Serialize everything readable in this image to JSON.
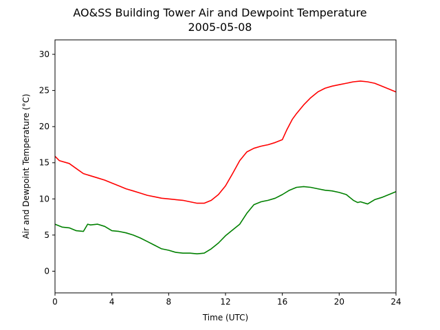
{
  "chart_data": {
    "type": "line",
    "title": "AO&SS Building Tower Air and Dewpoint Temperature",
    "subtitle": "2005-05-08",
    "xlabel": "Time (UTC)",
    "ylabel": "Air and Dewpoint Temperature (°C)",
    "xlim": [
      0,
      24
    ],
    "ylim": [
      -3,
      32
    ],
    "xticks": [
      0,
      4,
      8,
      12,
      16,
      20,
      24
    ],
    "yticks": [
      0,
      5,
      10,
      15,
      20,
      25,
      30
    ],
    "grid": false,
    "legend": "none",
    "series": [
      {
        "color": "#ff0000",
        "x": [
          0,
          0.3,
          1,
          1.5,
          2,
          2.5,
          3,
          3.5,
          4,
          4.5,
          5,
          5.5,
          6,
          6.5,
          7,
          7.5,
          8,
          8.5,
          9,
          9.5,
          10,
          10.5,
          11,
          11.5,
          12,
          12.5,
          13,
          13.5,
          14,
          14.5,
          15,
          15.5,
          16,
          16.3,
          16.7,
          17,
          17.5,
          18,
          18.5,
          19,
          19.5,
          20,
          20.5,
          21,
          21.5,
          22,
          22.5,
          23,
          23.5,
          24
        ],
        "y": [
          15.9,
          15.3,
          14.9,
          14.2,
          13.5,
          13.2,
          12.9,
          12.6,
          12.2,
          11.8,
          11.4,
          11.1,
          10.8,
          10.5,
          10.3,
          10.1,
          10.0,
          9.9,
          9.8,
          9.6,
          9.4,
          9.4,
          9.8,
          10.6,
          11.8,
          13.5,
          15.3,
          16.5,
          17.0,
          17.3,
          17.5,
          17.8,
          18.2,
          19.5,
          21.0,
          21.8,
          23.0,
          24.0,
          24.8,
          25.3,
          25.6,
          25.8,
          26.0,
          26.2,
          26.3,
          26.2,
          26.0,
          25.6,
          25.2,
          24.8
        ]
      },
      {
        "color": "#008000",
        "x": [
          0,
          0.5,
          1,
          1.5,
          2,
          2.3,
          2.5,
          3,
          3.5,
          4,
          4.5,
          5,
          5.5,
          6,
          6.5,
          7,
          7.5,
          8,
          8.5,
          9,
          9.5,
          10,
          10.5,
          11,
          11.5,
          12,
          12.5,
          13,
          13.5,
          14,
          14.5,
          15,
          15.5,
          16,
          16.5,
          17,
          17.5,
          18,
          18.5,
          19,
          19.5,
          20,
          20.5,
          21,
          21.3,
          21.5,
          22,
          22.5,
          23,
          23.5,
          24
        ],
        "y": [
          6.5,
          6.1,
          6.0,
          5.6,
          5.5,
          6.5,
          6.4,
          6.5,
          6.2,
          5.6,
          5.5,
          5.3,
          5.0,
          4.6,
          4.1,
          3.6,
          3.1,
          2.9,
          2.6,
          2.5,
          2.5,
          2.4,
          2.5,
          3.1,
          3.9,
          4.9,
          5.7,
          6.5,
          8.0,
          9.2,
          9.6,
          9.8,
          10.1,
          10.6,
          11.2,
          11.6,
          11.7,
          11.6,
          11.4,
          11.2,
          11.1,
          10.9,
          10.6,
          9.8,
          9.5,
          9.6,
          9.3,
          9.9,
          10.2,
          10.6,
          11.0
        ]
      }
    ]
  }
}
